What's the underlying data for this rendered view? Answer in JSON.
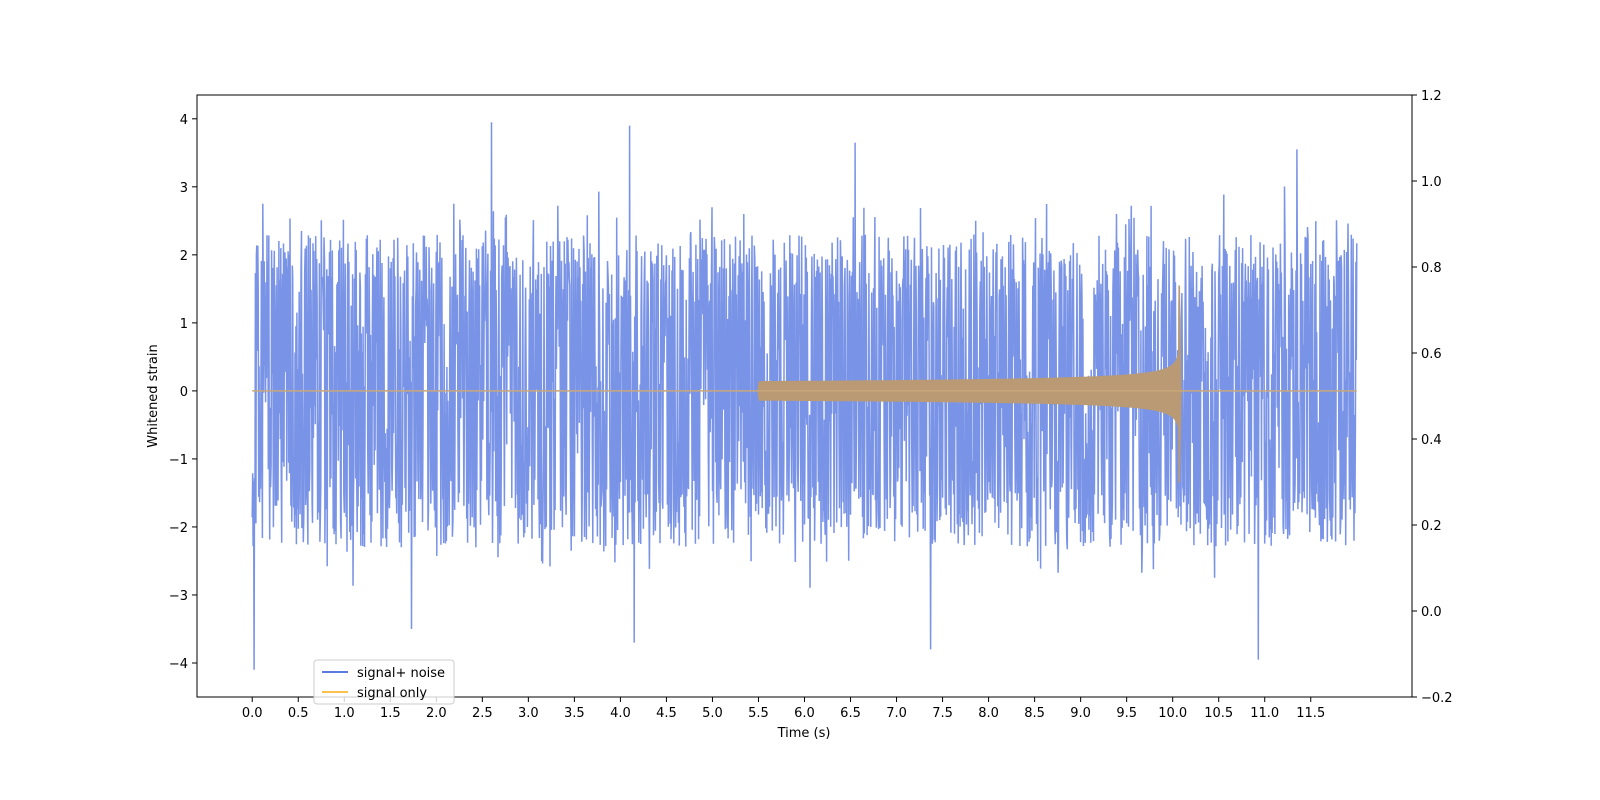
{
  "chart_data": {
    "type": "line",
    "title": "",
    "xlabel": "Time (s)",
    "ylabel": "Whitened strain",
    "ylabel_right": "",
    "xlim": [
      -0.6,
      12.6
    ],
    "ylim": [
      -4.5,
      4.35
    ],
    "ylim_right": [
      -0.2,
      1.2
    ],
    "x_ticks": [
      "0.0",
      "0.5",
      "1.0",
      "1.5",
      "2.0",
      "2.5",
      "3.0",
      "3.5",
      "4.0",
      "4.5",
      "5.0",
      "5.5",
      "6.0",
      "6.5",
      "7.0",
      "7.5",
      "8.0",
      "8.5",
      "9.0",
      "9.5",
      "10.0",
      "10.5",
      "11.0",
      "11.5"
    ],
    "y_ticks": [
      "4",
      "3",
      "2",
      "1",
      "0",
      "−1",
      "−2",
      "−3",
      "−4"
    ],
    "y_ticks_right": [
      "1.2",
      "1.0",
      "0.8",
      "0.6",
      "0.4",
      "0.2",
      "0.0",
      "−0.2"
    ],
    "grid": false,
    "legend_position": "lower-left",
    "series": [
      {
        "name": "signal+ noise",
        "color": "#5b7be0",
        "description_values": {
          "t_start": 0.0,
          "t_end": 12.0,
          "typical_envelope": [
            -2.3,
            2.3
          ],
          "notable_peaks": [
            {
              "t": 0.02,
              "y": -4.1
            },
            {
              "t": 2.6,
              "y": 3.95
            },
            {
              "t": 4.1,
              "y": 3.9
            },
            {
              "t": 4.15,
              "y": -3.7
            },
            {
              "t": 7.37,
              "y": -3.8
            },
            {
              "t": 10.93,
              "y": -3.95
            },
            {
              "t": 11.35,
              "y": 3.55
            },
            {
              "t": 6.55,
              "y": 3.65
            },
            {
              "t": 1.73,
              "y": -3.5
            }
          ]
        }
      },
      {
        "name": "signal only",
        "color": "#ffc14d",
        "description_values": {
          "t_start": 0.0,
          "t_end": 12.0,
          "chirp_start": 5.5,
          "merger_time": 10.08,
          "peak_amplitude": [
            -1.35,
            1.55
          ],
          "amplitude_at_9s": 0.25,
          "amplitude_at_10s": 0.75
        }
      }
    ]
  }
}
